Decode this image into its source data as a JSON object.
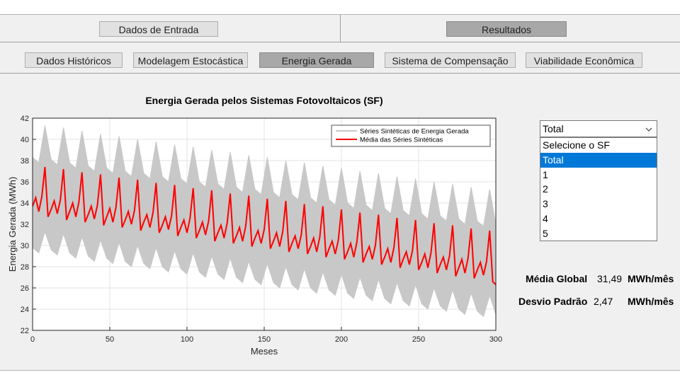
{
  "tabs": {
    "main": [
      "Dados de Entrada",
      "Resultados"
    ],
    "sub": [
      "Dados Históricos",
      "Modelagem Estocástica",
      "Energia Gerada",
      "Sistema de Compensação",
      "Viabilidade Econômica"
    ]
  },
  "chart_data": {
    "type": "line",
    "title": "Energia Gerada pelos Sistemas Fotovoltaicos (SF)",
    "xlabel": "Meses",
    "ylabel": "Energia Gerada (MWh)",
    "xlim": [
      0,
      300
    ],
    "xticks": [
      0,
      50,
      100,
      150,
      200,
      250,
      300
    ],
    "ylim": [
      22,
      42
    ],
    "yticks": [
      22,
      24,
      26,
      28,
      30,
      32,
      34,
      36,
      38,
      40,
      42
    ],
    "grid": true,
    "legend": "upper right",
    "series": [
      {
        "name": "Séries Sintéticas de Energia Gerada",
        "color": "#c8c8c8",
        "x": [
          0,
          4,
          8,
          12,
          16,
          20,
          24,
          28,
          32,
          36,
          40,
          44,
          48,
          52,
          56,
          60,
          64,
          68,
          72,
          76,
          80,
          84,
          88,
          92,
          96,
          100,
          104,
          108,
          112,
          116,
          120,
          124,
          128,
          132,
          136,
          140,
          144,
          148,
          152,
          156,
          160,
          164,
          168,
          172,
          176,
          180,
          184,
          188,
          192,
          196,
          200,
          204,
          208,
          212,
          216,
          220,
          224,
          228,
          232,
          236,
          240,
          244,
          248,
          252,
          256,
          260,
          264,
          268,
          272,
          276,
          280,
          284,
          288,
          292,
          296,
          300
        ],
        "high": [
          38.3,
          37.8,
          41.3,
          38.1,
          37.6,
          41.1,
          37.8,
          37.3,
          40.8,
          37.5,
          37.0,
          40.5,
          37.3,
          36.8,
          40.3,
          37.0,
          36.5,
          40.0,
          36.8,
          36.3,
          39.8,
          36.5,
          36.0,
          39.5,
          36.3,
          35.8,
          39.3,
          36.0,
          35.5,
          39.0,
          35.8,
          35.3,
          38.8,
          35.5,
          35.0,
          38.5,
          35.3,
          34.8,
          38.3,
          35.0,
          34.5,
          38.0,
          34.8,
          34.3,
          37.8,
          34.5,
          34.0,
          37.5,
          34.3,
          33.8,
          37.3,
          34.0,
          33.5,
          37.0,
          33.8,
          33.3,
          36.8,
          33.5,
          33.0,
          36.5,
          33.3,
          32.8,
          36.3,
          33.0,
          32.5,
          36.0,
          32.8,
          32.3,
          35.8,
          32.5,
          32.0,
          35.5,
          32.3,
          31.8,
          35.3,
          32.0
        ],
        "low": [
          29.8,
          29.3,
          31.3,
          29.6,
          29.1,
          31.1,
          29.3,
          28.8,
          30.8,
          29.0,
          28.5,
          30.5,
          28.8,
          28.3,
          30.3,
          28.5,
          28.0,
          30.0,
          28.3,
          27.8,
          29.8,
          28.0,
          27.5,
          29.5,
          27.8,
          27.3,
          29.3,
          27.5,
          27.0,
          29.0,
          27.3,
          26.8,
          28.8,
          27.0,
          26.5,
          28.5,
          26.8,
          26.3,
          28.3,
          26.5,
          26.0,
          28.0,
          26.3,
          25.8,
          27.8,
          26.0,
          25.5,
          27.5,
          25.8,
          25.3,
          27.3,
          25.5,
          25.0,
          27.0,
          25.3,
          24.8,
          26.8,
          25.0,
          24.5,
          26.5,
          24.8,
          24.3,
          26.3,
          24.5,
          24.0,
          26.0,
          24.3,
          23.8,
          25.8,
          24.0,
          23.5,
          25.5,
          23.8,
          23.3,
          25.3,
          23.5
        ]
      },
      {
        "name": "Média das Séries Sintéticas",
        "color": "#ff0000",
        "x": [
          0,
          2,
          4,
          6,
          8,
          10,
          12,
          14,
          16,
          18,
          20,
          22,
          24,
          26,
          28,
          30,
          32,
          34,
          36,
          38,
          40,
          42,
          44,
          46,
          48,
          50,
          52,
          54,
          56,
          58,
          60,
          62,
          64,
          66,
          68,
          70,
          72,
          74,
          76,
          78,
          80,
          82,
          84,
          86,
          88,
          90,
          92,
          94,
          96,
          98,
          100,
          102,
          104,
          106,
          108,
          110,
          112,
          114,
          116,
          118,
          120,
          122,
          124,
          126,
          128,
          130,
          132,
          134,
          136,
          138,
          140,
          142,
          144,
          146,
          148,
          150,
          152,
          154,
          156,
          158,
          160,
          162,
          164,
          166,
          168,
          170,
          172,
          174,
          176,
          178,
          180,
          182,
          184,
          186,
          188,
          190,
          192,
          194,
          196,
          198,
          200,
          202,
          204,
          206,
          208,
          210,
          212,
          214,
          216,
          218,
          220,
          222,
          224,
          226,
          228,
          230,
          232,
          234,
          236,
          238,
          240,
          242,
          244,
          246,
          248,
          250,
          252,
          254,
          256,
          258,
          260,
          262,
          264,
          266,
          268,
          270,
          272,
          274,
          276,
          278,
          280,
          282,
          284,
          286,
          288,
          290,
          292,
          294,
          296,
          298,
          300
        ],
        "values": [
          33.7,
          34.5,
          33.2,
          34.6,
          37.4,
          32.7,
          33.4,
          34.2,
          33.0,
          34.3,
          37.2,
          32.4,
          33.2,
          34.0,
          32.7,
          34.1,
          36.9,
          32.2,
          32.9,
          33.7,
          32.5,
          33.8,
          36.7,
          31.9,
          32.7,
          33.5,
          32.2,
          33.6,
          36.4,
          31.7,
          32.4,
          33.2,
          32.0,
          33.3,
          36.2,
          31.4,
          32.2,
          32.9,
          31.7,
          33.1,
          35.9,
          31.2,
          31.9,
          32.7,
          31.5,
          32.8,
          35.7,
          30.9,
          31.7,
          32.4,
          31.2,
          32.6,
          35.4,
          30.7,
          31.4,
          32.2,
          31.0,
          32.3,
          35.2,
          30.4,
          31.2,
          31.9,
          30.7,
          32.1,
          34.9,
          30.2,
          30.9,
          31.7,
          30.4,
          31.8,
          34.7,
          29.9,
          30.7,
          31.4,
          30.2,
          31.5,
          34.4,
          29.7,
          30.4,
          31.2,
          29.9,
          31.3,
          34.2,
          29.4,
          30.2,
          30.9,
          29.7,
          31.0,
          33.9,
          29.2,
          29.9,
          30.7,
          29.4,
          30.8,
          33.7,
          28.9,
          29.7,
          30.4,
          29.2,
          30.5,
          33.4,
          28.7,
          29.4,
          30.2,
          28.9,
          30.3,
          33.1,
          28.4,
          29.2,
          29.9,
          28.7,
          30.0,
          32.9,
          28.2,
          28.9,
          29.7,
          28.4,
          29.8,
          32.6,
          27.9,
          28.7,
          29.4,
          28.2,
          29.5,
          32.4,
          27.7,
          28.4,
          29.2,
          27.9,
          29.3,
          32.1,
          27.4,
          28.2,
          28.9,
          27.7,
          29.0,
          31.9,
          27.1,
          27.9,
          28.7,
          27.4,
          28.8,
          31.6,
          26.9,
          27.7,
          28.4,
          27.2,
          28.5,
          31.4,
          26.6,
          26.3
        ]
      }
    ]
  },
  "dropdown": {
    "selected": "Total",
    "options": [
      "Selecione o SF",
      "Total",
      "1",
      "2",
      "3",
      "4",
      "5"
    ]
  },
  "stats": [
    {
      "label": "Média Global",
      "value": "31,49",
      "unit": "MWh/mês"
    },
    {
      "label": "Desvio Padrão",
      "value": "2,47",
      "unit": "MWh/mês"
    }
  ]
}
